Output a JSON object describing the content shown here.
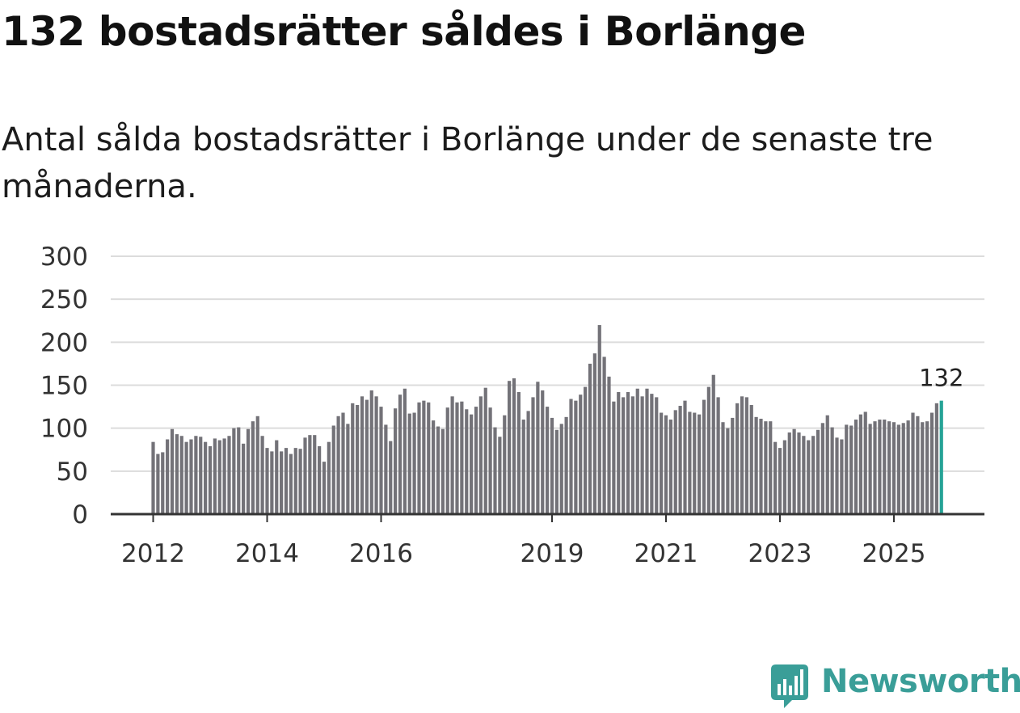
{
  "title": "132 bostadsrätter såldes i Borlänge",
  "subtitle": "Antal sålda bostadsrätter i Borlänge under de senaste tre månaderna.",
  "brand": {
    "name": "Newsworthy",
    "color": "#3a9e98"
  },
  "chart_data": {
    "type": "bar",
    "title": "132 bostadsrätter såldes i Borlänge",
    "xlabel": "",
    "ylabel": "",
    "ylim": [
      0,
      300
    ],
    "yticks": [
      "0",
      "50",
      "100",
      "150",
      "200",
      "250",
      "300"
    ],
    "xticks": [
      "2012",
      "2014",
      "2016",
      "2019",
      "2021",
      "2023",
      "2025"
    ],
    "grid": true,
    "bar_color": "#737278",
    "highlight_color": "#25a396",
    "end_label": "132",
    "start_period": "2012-01",
    "values": [
      84,
      70,
      72,
      87,
      99,
      93,
      91,
      84,
      87,
      91,
      90,
      84,
      79,
      88,
      86,
      88,
      91,
      100,
      101,
      82,
      99,
      108,
      114,
      91,
      77,
      73,
      86,
      73,
      77,
      70,
      77,
      76,
      89,
      92,
      92,
      79,
      61,
      84,
      103,
      114,
      118,
      105,
      129,
      127,
      137,
      133,
      144,
      137,
      125,
      104,
      85,
      123,
      139,
      146,
      117,
      118,
      130,
      132,
      130,
      109,
      102,
      99,
      124,
      137,
      130,
      131,
      122,
      116,
      125,
      137,
      147,
      124,
      101,
      90,
      115,
      155,
      158,
      142,
      110,
      120,
      136,
      154,
      144,
      125,
      112,
      98,
      105,
      113,
      134,
      132,
      139,
      148,
      175,
      187,
      220,
      183,
      160,
      131,
      142,
      136,
      142,
      137,
      146,
      137,
      146,
      140,
      136,
      118,
      115,
      110,
      121,
      126,
      132,
      119,
      118,
      116,
      133,
      148,
      162,
      136,
      107,
      100,
      112,
      129,
      137,
      136,
      127,
      113,
      111,
      108,
      108,
      84,
      77,
      86,
      95,
      99,
      95,
      91,
      86,
      91,
      98,
      106,
      115,
      101,
      89,
      87,
      104,
      103,
      110,
      116,
      119,
      105,
      108,
      110,
      110,
      108,
      107,
      104,
      106,
      109,
      118,
      114,
      107,
      108,
      118,
      129,
      132
    ]
  }
}
